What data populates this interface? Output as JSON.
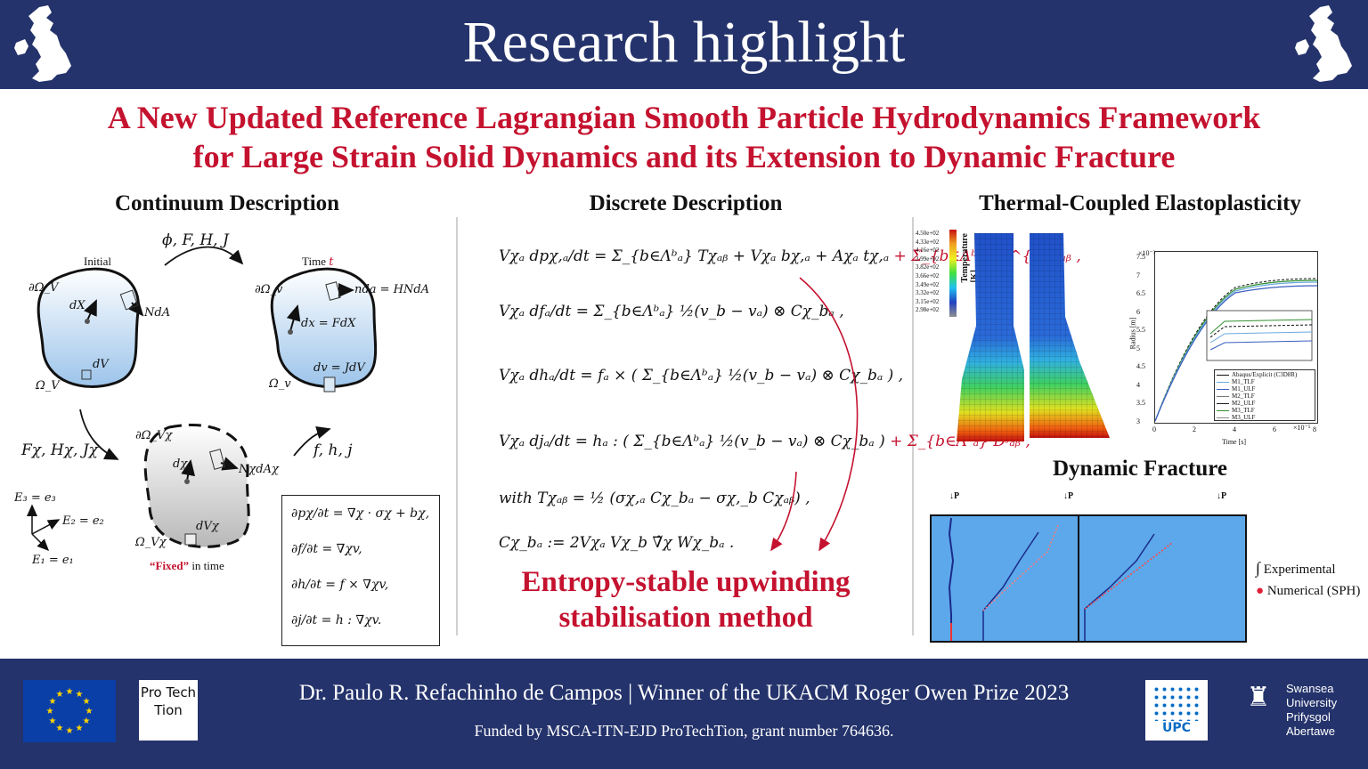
{
  "header": {
    "title": "Research highlight"
  },
  "paper": {
    "title_line1": "A New Updated Reference Lagrangian Smooth Particle Hydrodynamics Framework",
    "title_line2": "for Large Strain Solid Dynamics and its Extension to Dynamic Fracture"
  },
  "continuum": {
    "heading": "Continuum Description",
    "initial_label": "Initial",
    "time_label": "Time",
    "time_symbol": "t",
    "map_top": "ϕ, F, H, J",
    "map_left": "F𝜒, H𝜒, J𝜒",
    "map_right": "f, h, j",
    "omega_V": "∂Ω_V",
    "omega_V_inner": "Ω_V",
    "omega_v": "∂Ω_v",
    "omega_v_inner": "Ω_v",
    "omega_Vchi": "∂Ω_V𝜒",
    "omega_Vchi_inner": "Ω_V𝜒",
    "dX": "dX",
    "NdA": "NdA",
    "dV": "dV",
    "dx": "dx = FdX",
    "nda": "nda = HNdA",
    "dv": "dv = JdV",
    "dchi": "d𝜒",
    "Nchi": "N𝜒dA𝜒",
    "dVchi": "dV𝜒",
    "fixed_word": "“Fixed”",
    "fixed_rest": " in time",
    "e3": "E₃ = e₃",
    "e2": "E₂ = e₂",
    "e1": "E₁ = e₁",
    "box_eqs": [
      "∂p𝜒/∂t = ∇𝜒 · σ𝜒 + b𝜒,",
      "∂f/∂t = ∇𝜒v,",
      "∂h/∂t = f × ∇𝜒v,",
      "∂j/∂t = h : ∇𝜒v."
    ]
  },
  "discrete": {
    "heading": "Discrete Description",
    "eq1": "V𝜒ₐ dp𝜒,ₐ/dt = Σ_{b∈Λᵇₐ} T𝜒ₐᵦ + V𝜒ₐ b𝜒,ₐ + A𝜒ₐ t𝜒,ₐ",
    "eq1_red": "+ Σ_{b∈Λᵇₐ} D^{p𝜒}ₐᵦ ,",
    "eq2": "V𝜒ₐ dfₐ/dt = Σ_{b∈Λᵇₐ} ½(v_b − vₐ) ⊗ C𝜒_bₐ ,",
    "eq3": "V𝜒ₐ dhₐ/dt = fₐ × ( Σ_{b∈Λᵇₐ} ½(v_b − vₐ) ⊗ C𝜒_bₐ ) ,",
    "eq4": "V𝜒ₐ djₐ/dt = hₐ : ( Σ_{b∈Λᵇₐ} ½(v_b − vₐ) ⊗ C𝜒_bₐ )",
    "eq4_red": "+ Σ_{b∈Λᵇₐ} Dʲₐᵦ ,",
    "eq5": "with  T𝜒ₐᵦ = ½ (σ𝜒,ₐ C𝜒_bₐ − σ𝜒,_b C𝜒ₐᵦ) ,",
    "eq6": "C𝜒_bₐ := 2V𝜒ₐ V𝜒_b ∇̃𝜒 W𝜒_bₐ .",
    "entropy_line1": "Entropy-stable upwinding",
    "entropy_line2": "stabilisation method"
  },
  "thermal": {
    "heading": "Thermal-Coupled Elastoplasticity",
    "colorbar_title": "Temperature [K]",
    "colorbar_ticks": [
      "4.50e+02",
      "4.33e+02",
      "4.16e+02",
      "3.99e+02",
      "3.82e+02",
      "3.66e+02",
      "3.49e+02",
      "3.32e+02",
      "3.15e+02",
      "2.98e+02"
    ],
    "plot": {
      "exponent_y": "×10⁻³",
      "exponent_x": "×10⁻⁵",
      "ylabel": "Radius [m]",
      "xlabel": "Time [s]",
      "y_ticks": [
        "7.5",
        "7",
        "6.5",
        "6",
        "5.5",
        "5",
        "4.5",
        "4",
        "3.5",
        "3"
      ],
      "x_ticks": [
        "0",
        "2",
        "4",
        "6",
        "8"
      ],
      "legend": [
        "Abaqus/Explicit (C3D8R)",
        "M1_TLF",
        "M1_ULF",
        "M2_TLF",
        "M2_ULF",
        "M3_TLF",
        "M3_ULF"
      ]
    }
  },
  "fracture": {
    "heading": "Dynamic Fracture",
    "load_label": "P",
    "legend_experimental": "Experimental",
    "legend_numerical": "Numerical (SPH)"
  },
  "footer": {
    "main": "Dr. Paulo R. Refachinho de Campos | Winner of the UKACM Roger Owen Prize 2023",
    "sub": "Funded by MSCA-ITN-EJD ProTechTion, grant number 764636.",
    "protechtion_logo": "Pro Tech Tion",
    "upc_logo": "UPC",
    "swansea_lines": [
      "Swansea",
      "University",
      "Prifysgol",
      "Abertawe"
    ]
  },
  "colors": {
    "navy": "#24336b",
    "red": "#c4122f",
    "blue_light": "#4f9fe0"
  }
}
